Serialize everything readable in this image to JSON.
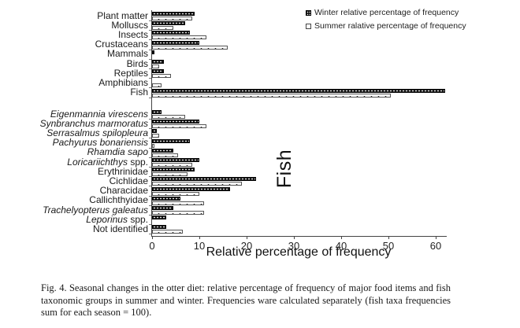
{
  "legend": {
    "winter": {
      "label": "Winter relative percentage of frequency"
    },
    "summer": {
      "label": "Summer ralative percentage of frequency"
    }
  },
  "colors": {
    "winter_bar": "#161616",
    "summer_bar": "#ffffff",
    "axis": "#444444"
  },
  "chart_data": {
    "type": "bar",
    "orientation": "horizontal",
    "xlabel": "Relative percentage of frequency",
    "xlim": [
      0,
      62
    ],
    "xticks": [
      0,
      10,
      20,
      30,
      40,
      50,
      60
    ],
    "grid": false,
    "legend_position": "top-right",
    "series_names": [
      "Winter relative percentage of frequency",
      "Summer ralative percentage of frequency"
    ],
    "groups": [
      {
        "id": "major-food-items",
        "label": "",
        "items": [
          {
            "italic": "",
            "plain": "Plant matter",
            "winter": 9,
            "summer": 8.5
          },
          {
            "italic": "",
            "plain": "Molluscs",
            "winter": 7,
            "summer": 4.5
          },
          {
            "italic": "",
            "plain": "Insects",
            "winter": 8,
            "summer": 11.5
          },
          {
            "italic": "",
            "plain": "Crustaceans",
            "winter": 10,
            "summer": 16
          },
          {
            "italic": "",
            "plain": "Mammals",
            "winter": 0.5,
            "summer": 0
          },
          {
            "italic": "",
            "plain": "Birds",
            "winter": 2.5,
            "summer": 1.5
          },
          {
            "italic": "",
            "plain": "Reptiles",
            "winter": 2.5,
            "summer": 4
          },
          {
            "italic": "",
            "plain": "Amphibians",
            "winter": 0,
            "summer": 2
          },
          {
            "italic": "",
            "plain": "Fish",
            "winter": 62,
            "summer": 50.5
          }
        ]
      },
      {
        "id": "fish-taxa",
        "label": "Fish",
        "items": [
          {
            "italic": "Eigenmannia virescens",
            "plain": "",
            "winter": 2,
            "summer": 7
          },
          {
            "italic": "Synbranchus marmoratus",
            "plain": "",
            "winter": 10,
            "summer": 11.5
          },
          {
            "italic": "Serrasalmus spilopleura",
            "plain": "",
            "winter": 1,
            "summer": 1.5
          },
          {
            "italic": "Pachyurus bonariensis",
            "plain": "",
            "winter": 8,
            "summer": 0.5
          },
          {
            "italic": "Rhamdia sapo",
            "plain": "",
            "winter": 4.5,
            "summer": 5.5
          },
          {
            "italic": "Loricariichthys",
            "plain": " spp.",
            "winter": 10,
            "summer": 8.5
          },
          {
            "italic": "",
            "plain": "Erythrinidae",
            "winter": 9,
            "summer": 7.5
          },
          {
            "italic": "",
            "plain": "Cichlidae",
            "winter": 22,
            "summer": 19
          },
          {
            "italic": "",
            "plain": "Characidae",
            "winter": 16.5,
            "summer": 10
          },
          {
            "italic": "",
            "plain": "Callichthyidae",
            "winter": 6,
            "summer": 11
          },
          {
            "italic": "Trachelyopterus galeatus",
            "plain": "",
            "winter": 4.5,
            "summer": 11
          },
          {
            "italic": "Leporinus",
            "plain": " spp.",
            "winter": 3,
            "summer": 0
          },
          {
            "italic": "",
            "plain": "Not identified",
            "winter": 3,
            "summer": 6.5
          }
        ]
      }
    ]
  },
  "caption": {
    "text": "Fig. 4. Seasonal changes in the otter diet: relative percentage of frequency of major food items and fish taxonomic groups in summer and winter. Frequencies ware calculated separately (fish taxa frequencies sum for each season = 100)."
  }
}
